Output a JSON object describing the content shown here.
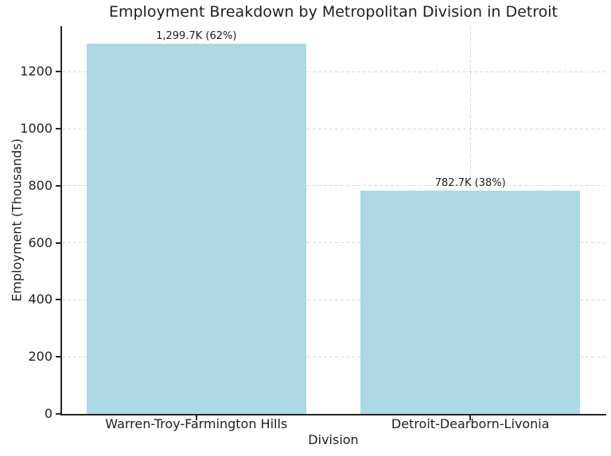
{
  "chart_data": {
    "type": "bar",
    "title": "Employment Breakdown by Metropolitan Division in Detroit",
    "xlabel": "Division",
    "ylabel": "Employment (Thousands)",
    "categories": [
      "Warren-Troy-Farmington Hills",
      "Detroit-Dearborn-Livonia"
    ],
    "values": [
      1299.7,
      782.7
    ],
    "bar_labels": [
      "1,299.7K (62%)",
      "782.7K (38%)"
    ],
    "yticks": [
      0,
      200,
      400,
      600,
      800,
      1000,
      1200
    ],
    "ylim": [
      0,
      1360
    ],
    "xlim": [
      -0.49,
      1.49
    ],
    "bar_width_units": 0.8,
    "grid": {
      "visible": true,
      "style": "dashed",
      "axes": "both"
    },
    "legend": "none",
    "colors": {
      "bar": "#add8e6",
      "grid": "#d7d7d7",
      "spine": "#262626",
      "text": "#1f1f1f",
      "background": "#ffffff"
    }
  }
}
